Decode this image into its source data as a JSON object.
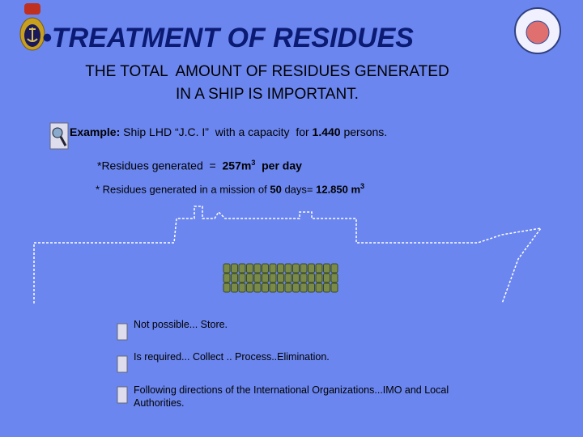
{
  "header": {
    "bullet": "•",
    "title": "TREATMENT OF RESIDUES",
    "subtitle": [
      "THE TOTAL  AMOUNT OF RESIDUES GENERATED",
      "IN A SHIP IS IMPORTANT."
    ]
  },
  "example": {
    "label": "Example:",
    "text": " Ship LHD “J.C. I”  with a capacity  for ",
    "capacity": "1.440",
    "unit": " persons."
  },
  "daily": {
    "text": "*Residues generated  =  ",
    "amount": "257m",
    "exponent": "3",
    "period": "  per day"
  },
  "mission": {
    "text": "* Residues generated in a mission of ",
    "days": "50",
    "middle": " days= ",
    "amount": "12.850 m",
    "exponent": "3"
  },
  "options": [
    "Not  possible... Store.",
    "Is required... Collect .. Process..Elimination.",
    "Following  directions of the  International Organizations...IMO and  Local Authorities."
  ]
}
